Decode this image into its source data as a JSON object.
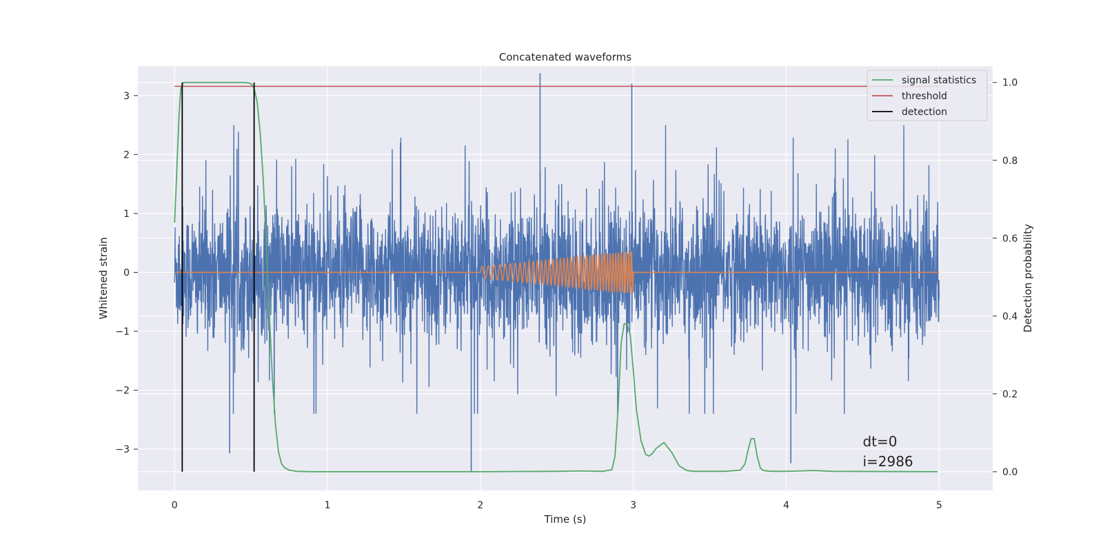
{
  "chart_data": {
    "type": "line",
    "title": "Concatenated waveforms",
    "xlabel": "Time (s)",
    "ylabel": "Whitened strain",
    "y2label": "Detection probability",
    "xlim": [
      -0.24,
      5.35
    ],
    "ylim": [
      -3.7,
      3.5
    ],
    "y2lim": [
      -0.048,
      1.042
    ],
    "x_ticks": [
      0,
      1,
      2,
      3,
      4,
      5
    ],
    "x_tick_labels": [
      "0",
      "1",
      "2",
      "3",
      "4",
      "5"
    ],
    "y_ticks": [
      -3,
      -2,
      -1,
      0,
      1,
      2,
      3
    ],
    "y_tick_labels": [
      "−3",
      "−2",
      "−1",
      "0",
      "1",
      "2",
      "3"
    ],
    "y2_ticks": [
      0,
      0.2,
      0.4,
      0.6,
      0.8,
      1.0
    ],
    "y2_tick_labels": [
      "0.0",
      "0.2",
      "0.4",
      "0.6",
      "0.8",
      "1.0"
    ],
    "grid": true,
    "legend_position": "top-right",
    "legend": [
      {
        "label": "signal statistics",
        "color": "#55a868"
      },
      {
        "label": "threshold",
        "color": "#c44e52"
      },
      {
        "label": "detection",
        "color": "#000000"
      }
    ],
    "noise": {
      "color": "#4c72b0",
      "x_range": [
        0,
        5
      ],
      "envelope": {
        "q10": -0.7,
        "q90": 0.62,
        "typical_max": 2.5,
        "typical_min": -2.4
      },
      "spikes": [
        {
          "x": 2.39,
          "y": 3.38
        },
        {
          "x": 1.94,
          "y": -3.38
        },
        {
          "x": 2.99,
          "y": 3.2
        },
        {
          "x": 0.36,
          "y": -3.07
        },
        {
          "x": 4.03,
          "y": -3.24
        }
      ]
    },
    "chirp": {
      "color": "#dd8452",
      "start_x": 2.0,
      "end_x": 3.0,
      "amplitude_start": 0.1,
      "amplitude_end": 0.36,
      "cycles": 42
    },
    "signal_statistics": {
      "color": "#55a868",
      "x": [
        0,
        0.01,
        0.02,
        0.03,
        0.04,
        0.05,
        0.06,
        0.08,
        0.1,
        0.2,
        0.3,
        0.4,
        0.45,
        0.48,
        0.5,
        0.52,
        0.54,
        0.56,
        0.58,
        0.6,
        0.62,
        0.64,
        0.66,
        0.68,
        0.7,
        0.72,
        0.75,
        0.8,
        0.9,
        1.0,
        2.0,
        2.5,
        2.65,
        2.8,
        2.86,
        2.88,
        2.9,
        2.92,
        2.94,
        2.96,
        2.98,
        3.0,
        3.02,
        3.05,
        3.08,
        3.1,
        3.12,
        3.15,
        3.2,
        3.25,
        3.3,
        3.35,
        3.4,
        3.6,
        3.7,
        3.73,
        3.75,
        3.77,
        3.79,
        3.81,
        3.83,
        3.85,
        3.9,
        4.0,
        4.18,
        4.3,
        4.99
      ],
      "y": [
        0.64,
        0.73,
        0.83,
        0.92,
        0.98,
        0.995,
        1.0,
        1.0,
        1.0,
        1.0,
        1.0,
        1.0,
        1.0,
        0.999,
        0.997,
        0.985,
        0.95,
        0.87,
        0.75,
        0.58,
        0.4,
        0.24,
        0.12,
        0.05,
        0.02,
        0.01,
        0.004,
        0.001,
        0.0,
        0.0,
        0.0,
        0.001,
        0.002,
        0.001,
        0.005,
        0.04,
        0.16,
        0.33,
        0.38,
        0.38,
        0.35,
        0.26,
        0.16,
        0.08,
        0.045,
        0.04,
        0.045,
        0.06,
        0.075,
        0.05,
        0.015,
        0.003,
        0.001,
        0.001,
        0.004,
        0.02,
        0.055,
        0.085,
        0.085,
        0.04,
        0.01,
        0.003,
        0.001,
        0.001,
        0.003,
        0.001,
        0.0
      ]
    },
    "threshold": {
      "value": 0.99,
      "x_range": [
        0,
        5
      ]
    },
    "detections": [
      {
        "x": 0.05,
        "y_range": [
          0.0,
          1.0
        ]
      },
      {
        "x": 0.52,
        "y_range": [
          0.0,
          1.0
        ]
      }
    ],
    "annotations": [
      {
        "text": "dt=0",
        "x": 4.5,
        "y": -2.95
      },
      {
        "text": "i=2986",
        "x": 4.5,
        "y": -3.29
      }
    ]
  }
}
